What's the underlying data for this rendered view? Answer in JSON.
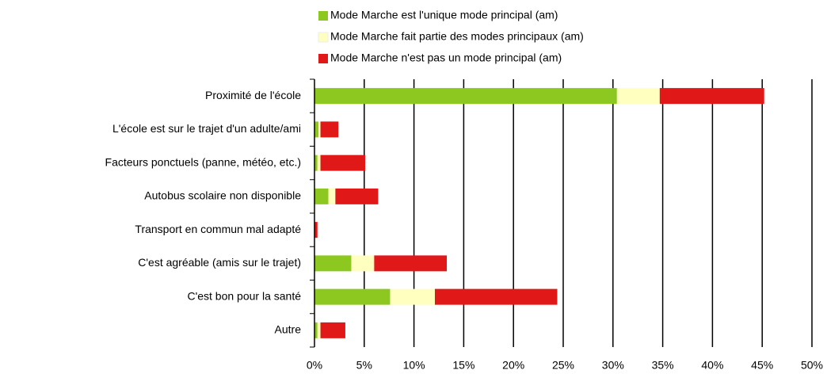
{
  "chart_data": {
    "type": "bar_stacked_horizontal",
    "categories": [
      "Proximité de l'école",
      "L'école est sur le trajet d'un adulte/ami",
      "Facteurs ponctuels (panne, météo, etc.)",
      "Autobus scolaire non disponible",
      "Transport en commun mal adapté",
      "C'est agréable (amis sur le trajet)",
      "C'est bon pour la santé",
      "Autre"
    ],
    "series": [
      {
        "name": "Mode Marche est l'unique mode principal (am)",
        "color": "#8cc820",
        "values": [
          30.4,
          0.4,
          0.3,
          1.4,
          0,
          3.7,
          7.6,
          0.3
        ]
      },
      {
        "name": "Mode Marche fait partie des modes principaux (am)",
        "color": "#ffffc0",
        "values": [
          4.3,
          0.2,
          0.3,
          0.7,
          0,
          2.3,
          4.5,
          0.3
        ]
      },
      {
        "name": "Mode Marche n'est pas un mode principal (am)",
        "color": "#e01818",
        "values": [
          10.5,
          1.8,
          4.5,
          4.3,
          0.3,
          7.3,
          12.3,
          2.5
        ]
      }
    ],
    "xlim": [
      0,
      50
    ],
    "xticks": [
      {
        "value": 0,
        "label": "0%"
      },
      {
        "value": 5,
        "label": "5%"
      },
      {
        "value": 10,
        "label": "10%"
      },
      {
        "value": 15,
        "label": "15%"
      },
      {
        "value": 20,
        "label": "20%"
      },
      {
        "value": 25,
        "label": "25%"
      },
      {
        "value": 30,
        "label": "30%"
      },
      {
        "value": 35,
        "label": "35%"
      },
      {
        "value": 40,
        "label": "40%"
      },
      {
        "value": 45,
        "label": "45%"
      },
      {
        "value": 50,
        "label": "50%"
      }
    ],
    "grid": true,
    "legend": "top"
  }
}
